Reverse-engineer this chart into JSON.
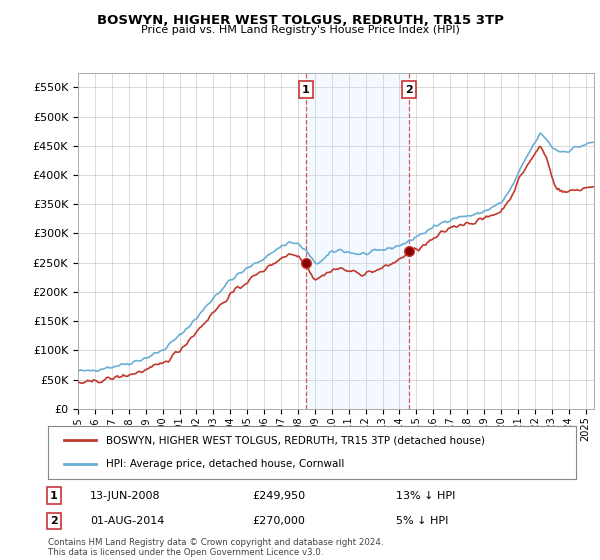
{
  "title": "BOSWYN, HIGHER WEST TOLGUS, REDRUTH, TR15 3TP",
  "subtitle": "Price paid vs. HM Land Registry's House Price Index (HPI)",
  "yticks": [
    0,
    50000,
    100000,
    150000,
    200000,
    250000,
    300000,
    350000,
    400000,
    450000,
    500000,
    550000
  ],
  "ylim": [
    0,
    575000
  ],
  "xlim_start": 1995.0,
  "xlim_end": 2025.5,
  "hpi_color": "#6baed6",
  "price_color": "#c0392b",
  "shade_color": "#ddeeff",
  "grid_color": "#cccccc",
  "bg_color": "#ffffff",
  "legend_border_color": "#888888",
  "marker1_date": 2008.45,
  "marker1_value": 249950,
  "marker1_label": "1",
  "marker1_date_str": "13-JUN-2008",
  "marker1_price_str": "£249,950",
  "marker1_hpi_str": "13% ↓ HPI",
  "marker2_date": 2014.58,
  "marker2_value": 270000,
  "marker2_label": "2",
  "marker2_date_str": "01-AUG-2014",
  "marker2_price_str": "£270,000",
  "marker2_hpi_str": "5% ↓ HPI",
  "footer": "Contains HM Land Registry data © Crown copyright and database right 2024.\nThis data is licensed under the Open Government Licence v3.0.",
  "legend_line1": "BOSWYN, HIGHER WEST TOLGUS, REDRUTH, TR15 3TP (detached house)",
  "legend_line2": "HPI: Average price, detached house, Cornwall",
  "xtick_years": [
    1995,
    1996,
    1997,
    1998,
    1999,
    2000,
    2001,
    2002,
    2003,
    2004,
    2005,
    2006,
    2007,
    2008,
    2009,
    2010,
    2011,
    2012,
    2013,
    2014,
    2015,
    2016,
    2017,
    2018,
    2019,
    2020,
    2021,
    2022,
    2023,
    2024,
    2025
  ]
}
